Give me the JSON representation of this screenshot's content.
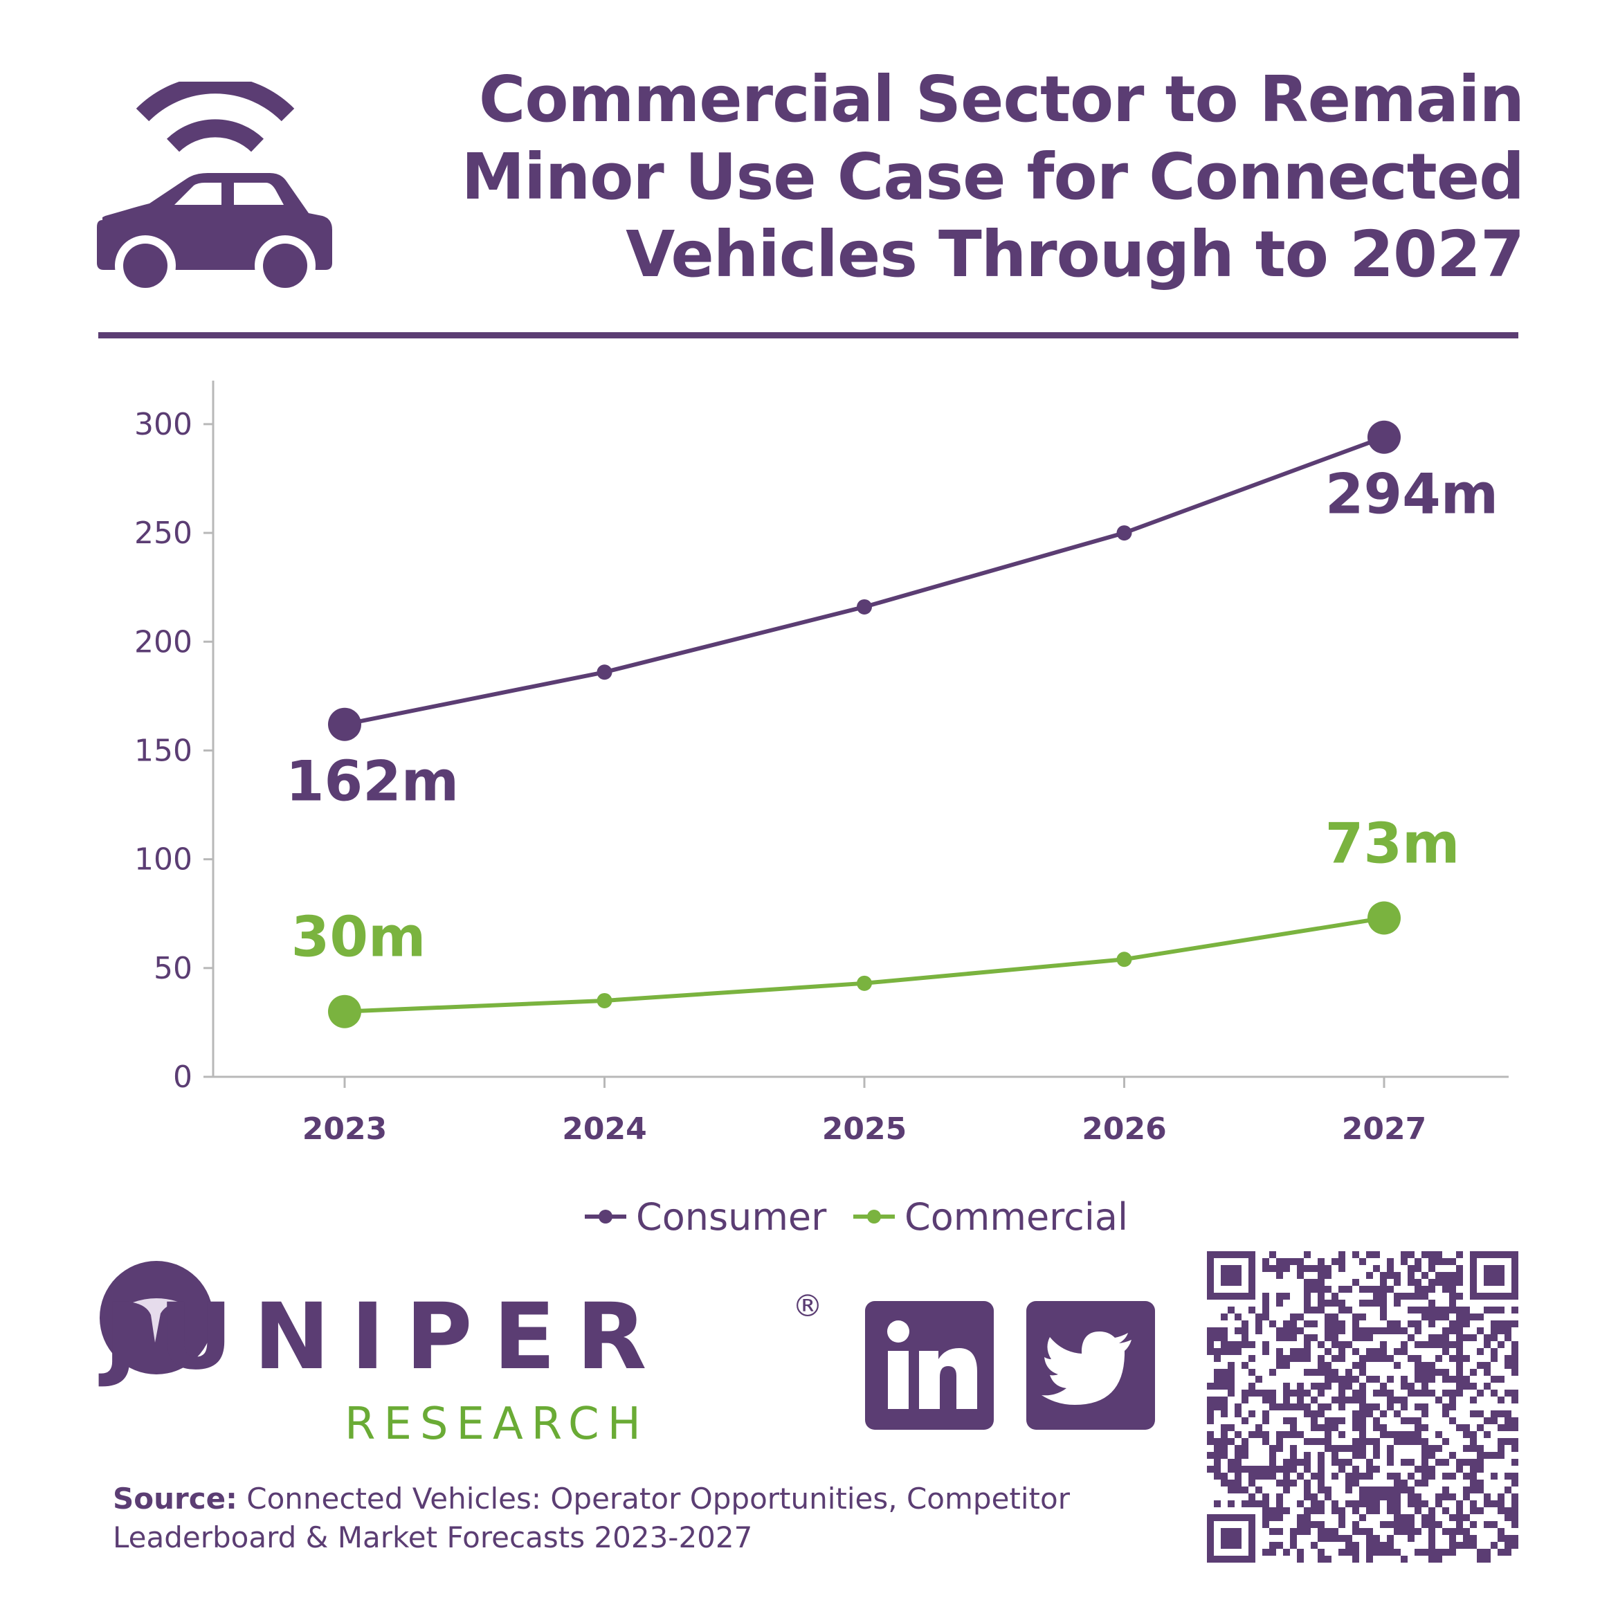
{
  "header": {
    "title_lines": [
      "Commercial Sector to Remain",
      "Minor Use Case for Connected",
      "Vehicles Through to 2027"
    ],
    "icon": "connected-car-icon"
  },
  "chart_data": {
    "type": "line",
    "title": "Commercial Sector to Remain Minor Use Case for Connected Vehicles Through to 2027",
    "x": [
      "2023",
      "2024",
      "2025",
      "2026",
      "2027"
    ],
    "series": [
      {
        "name": "Consumer",
        "values": [
          162,
          186,
          216,
          250,
          294
        ],
        "color": "#5b3d73"
      },
      {
        "name": "Commercial",
        "values": [
          30,
          35,
          43,
          54,
          73
        ],
        "color": "#7ab33f"
      }
    ],
    "yticks": [
      0,
      50,
      100,
      150,
      200,
      250,
      300
    ],
    "ylim": [
      0,
      320
    ],
    "annotations": [
      {
        "series": "Consumer",
        "x": "2023",
        "value": 162,
        "text": "162m"
      },
      {
        "series": "Consumer",
        "x": "2027",
        "value": 294,
        "text": "294m"
      },
      {
        "series": "Commercial",
        "x": "2023",
        "value": 30,
        "text": "30m"
      },
      {
        "series": "Commercial",
        "x": "2027",
        "value": 73,
        "text": "73m"
      }
    ],
    "legend_position": "bottom-center",
    "grid": false
  },
  "footer": {
    "brand_name": "JUNIPER",
    "brand_reg": "®",
    "brand_sub": "RESEARCH",
    "social_icons": [
      "linkedin-icon",
      "twitter-icon"
    ],
    "source_label": "Source:",
    "source_text": "Connected Vehicles: Operator Opportunities, Competitor Leaderboard & Market Forecasts 2023-2027"
  }
}
